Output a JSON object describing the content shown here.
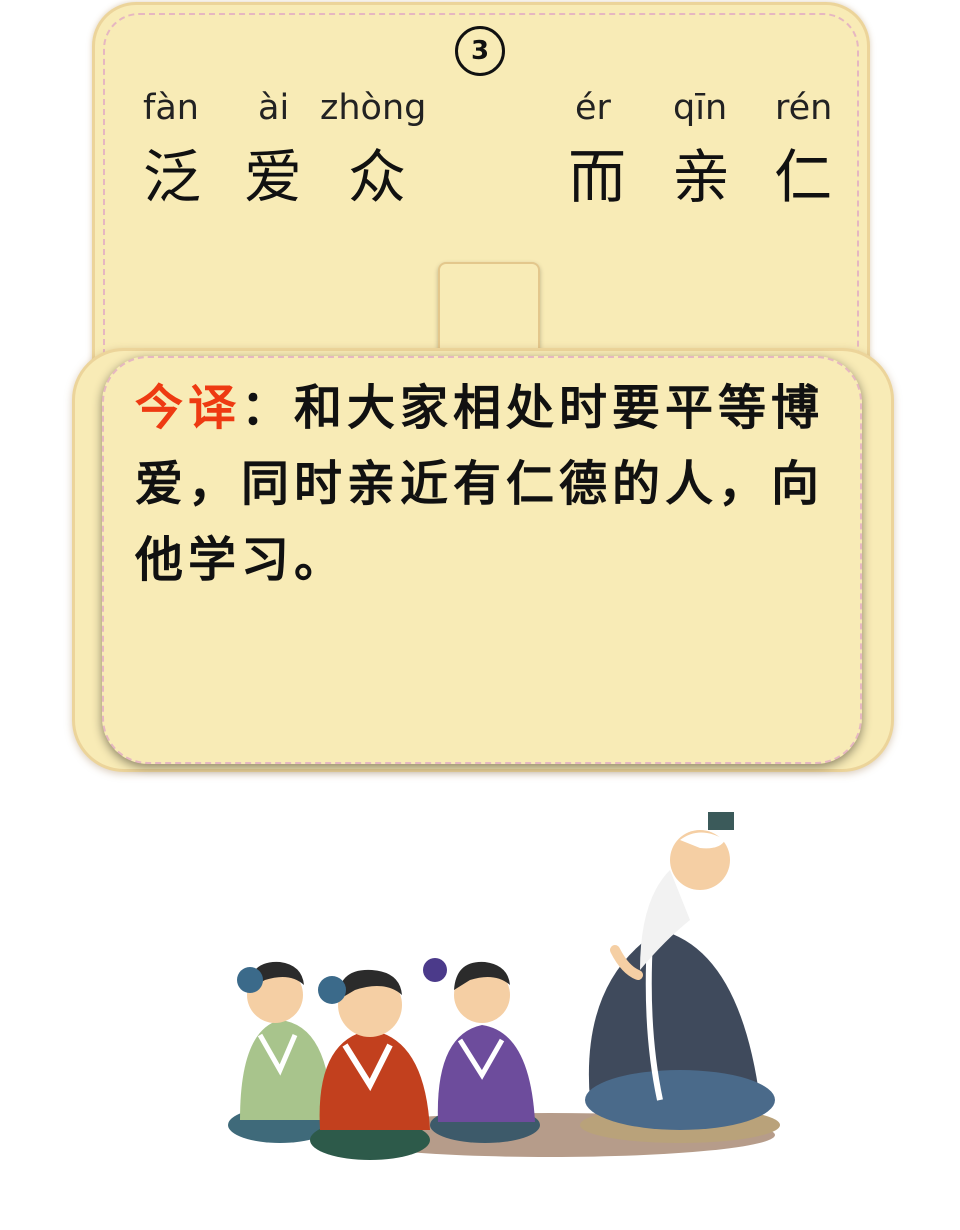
{
  "verse_number": "3",
  "pinyin": [
    "fàn",
    "ài",
    "zhòng",
    "ér",
    "qīn",
    "rén"
  ],
  "hanzi": [
    "泛",
    "爱",
    "众",
    "而",
    "亲",
    "仁"
  ],
  "translation": {
    "label": "今译",
    "separator": "：",
    "text": "和大家相处时要平等博爱，同时亲近有仁德的人，向他学习。"
  },
  "colors": {
    "card_bg": "#f8ebb6",
    "label_red": "#ee3a12"
  }
}
